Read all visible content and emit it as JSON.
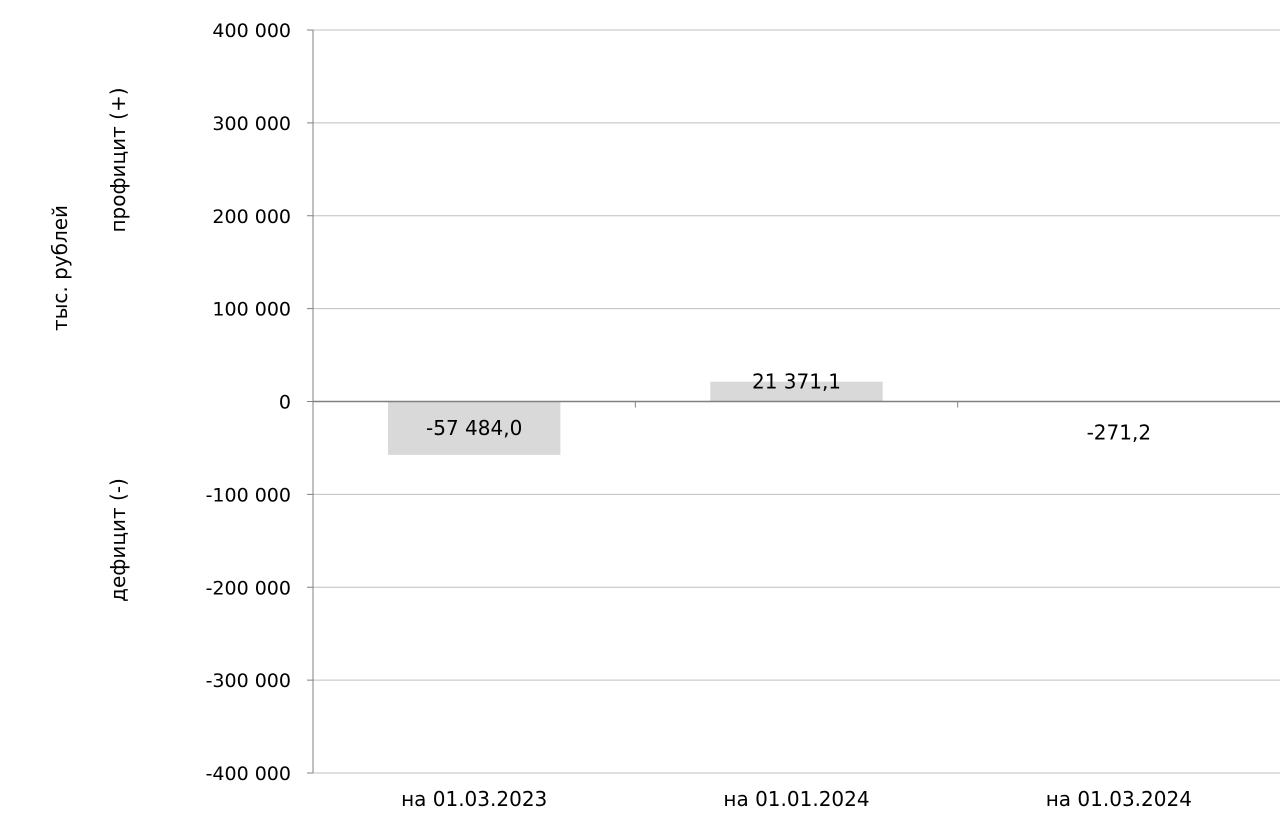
{
  "chart_data": {
    "type": "bar",
    "categories": [
      "на 01.03.2023",
      "на 01.01.2024",
      "на 01.03.2024"
    ],
    "values": [
      -57484.0,
      21371.1,
      -271.2
    ],
    "value_labels": [
      "-57 484,0",
      "21 371,1",
      "-271,2"
    ],
    "ylim": [
      -400000,
      400000
    ],
    "yticks": [
      400000,
      300000,
      200000,
      100000,
      0,
      -100000,
      -200000,
      -300000,
      -400000
    ],
    "ytick_labels": [
      "400 000",
      "300 000",
      "200 000",
      "100 000",
      "0",
      "-100 000",
      "-200 000",
      "-300 000",
      "-400 000"
    ],
    "ylabel": "тыс. рублей",
    "ylabel_positive": "профицит (+)",
    "ylabel_negative": "дефицит (-)",
    "grid": true,
    "bar_color": "#d9d9d9",
    "grid_color": "#bfbfbf"
  }
}
